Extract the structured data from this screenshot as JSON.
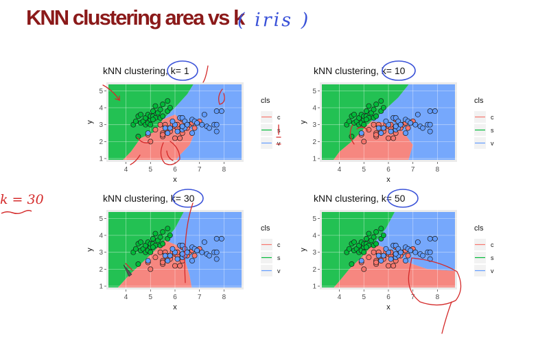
{
  "slide": {
    "title": "KNN clustering area vs k",
    "annotation_iris": "( iris )",
    "annotation_k": "k = 30"
  },
  "colors": {
    "title": "#8b1a1a",
    "class_c": "#f8766d",
    "class_s": "#00ba38",
    "class_v": "#619cff",
    "ink_blue": "#3a52d8",
    "ink_red": "#d42a2a"
  },
  "chart_data": [
    {
      "type": "scatter",
      "title": "kNN clustering, k= 1",
      "xlabel": "x",
      "ylabel": "y",
      "xlim": [
        3.2,
        8.8
      ],
      "ylim": [
        0.8,
        5.5
      ],
      "xticks": [
        4,
        5,
        6,
        7,
        8
      ],
      "yticks": [
        1,
        2,
        3,
        4,
        5
      ],
      "grid": true,
      "legend": {
        "title": "cls",
        "entries": [
          "c",
          "s",
          "v"
        ],
        "position": "right"
      },
      "background": "decision regions"
    },
    {
      "type": "scatter",
      "title": "kNN clustering, k= 10",
      "xlabel": "x",
      "ylabel": "y",
      "xlim": [
        3.2,
        8.8
      ],
      "ylim": [
        0.8,
        5.5
      ],
      "xticks": [
        4,
        5,
        6,
        7,
        8
      ],
      "yticks": [
        1,
        2,
        3,
        4,
        5
      ],
      "grid": true,
      "legend": {
        "title": "cls",
        "entries": [
          "c",
          "s",
          "v"
        ],
        "position": "right"
      },
      "background": "decision regions"
    },
    {
      "type": "scatter",
      "title": "kNN clustering, k= 30",
      "xlabel": "x",
      "ylabel": "y",
      "xlim": [
        3.2,
        8.8
      ],
      "ylim": [
        0.8,
        5.5
      ],
      "xticks": [
        4,
        5,
        6,
        7,
        8
      ],
      "yticks": [
        1,
        2,
        3,
        4,
        5
      ],
      "grid": true,
      "legend": {
        "title": "cls",
        "entries": [
          "c",
          "s",
          "v"
        ],
        "position": "right"
      },
      "background": "decision regions"
    },
    {
      "type": "scatter",
      "title": "kNN clustering, k= 50",
      "xlabel": "x",
      "ylabel": "y",
      "xlim": [
        3.2,
        8.8
      ],
      "ylim": [
        0.8,
        5.5
      ],
      "xticks": [
        4,
        5,
        6,
        7,
        8
      ],
      "yticks": [
        1,
        2,
        3,
        4,
        5
      ],
      "grid": true,
      "legend": {
        "title": "cls",
        "entries": [
          "c",
          "s",
          "v"
        ],
        "position": "right"
      },
      "background": "decision regions"
    }
  ],
  "points": {
    "s": [
      [
        4.3,
        3.0
      ],
      [
        4.4,
        3.2
      ],
      [
        4.5,
        3.5
      ],
      [
        4.6,
        3.1
      ],
      [
        4.7,
        3.2
      ],
      [
        4.8,
        3.0
      ],
      [
        4.8,
        3.4
      ],
      [
        4.9,
        3.1
      ],
      [
        4.9,
        3.6
      ],
      [
        5.0,
        3.3
      ],
      [
        5.0,
        3.5
      ],
      [
        5.1,
        3.8
      ],
      [
        5.1,
        3.5
      ],
      [
        5.2,
        3.4
      ],
      [
        5.2,
        4.1
      ],
      [
        5.3,
        3.7
      ],
      [
        5.4,
        3.9
      ],
      [
        5.4,
        3.4
      ],
      [
        5.5,
        3.5
      ],
      [
        5.5,
        4.2
      ],
      [
        5.7,
        3.8
      ],
      [
        5.7,
        4.4
      ],
      [
        5.8,
        4.0
      ],
      [
        5.1,
        3.3
      ],
      [
        4.6,
        3.6
      ],
      [
        4.5,
        2.3
      ],
      [
        5.0,
        3.0
      ]
    ],
    "c": [
      [
        4.9,
        2.4
      ],
      [
        5.0,
        2.0
      ],
      [
        5.2,
        2.7
      ],
      [
        5.4,
        3.0
      ],
      [
        5.5,
        2.3
      ],
      [
        5.5,
        2.5
      ],
      [
        5.6,
        2.9
      ],
      [
        5.6,
        3.0
      ],
      [
        5.7,
        2.8
      ],
      [
        5.8,
        2.7
      ],
      [
        5.9,
        3.0
      ],
      [
        6.0,
        2.2
      ],
      [
        6.0,
        2.9
      ],
      [
        6.1,
        2.8
      ],
      [
        6.2,
        2.2
      ],
      [
        6.3,
        2.5
      ],
      [
        6.4,
        2.9
      ],
      [
        6.5,
        2.8
      ],
      [
        6.6,
        3.0
      ],
      [
        6.7,
        3.1
      ],
      [
        6.8,
        2.8
      ],
      [
        6.9,
        3.1
      ],
      [
        7.0,
        3.2
      ],
      [
        5.7,
        2.6
      ],
      [
        6.1,
        3.0
      ],
      [
        5.8,
        2.6
      ],
      [
        6.3,
        3.3
      ],
      [
        5.5,
        2.4
      ]
    ],
    "v": [
      [
        4.9,
        2.5
      ],
      [
        5.6,
        2.8
      ],
      [
        5.7,
        2.5
      ],
      [
        5.8,
        2.8
      ],
      [
        6.0,
        3.0
      ],
      [
        6.1,
        2.6
      ],
      [
        6.2,
        3.4
      ],
      [
        6.3,
        2.7
      ],
      [
        6.3,
        3.4
      ],
      [
        6.4,
        2.8
      ],
      [
        6.4,
        3.2
      ],
      [
        6.5,
        3.0
      ],
      [
        6.7,
        3.3
      ],
      [
        6.7,
        2.5
      ],
      [
        6.8,
        3.2
      ],
      [
        6.9,
        3.1
      ],
      [
        7.1,
        3.0
      ],
      [
        7.2,
        3.6
      ],
      [
        7.3,
        2.9
      ],
      [
        7.4,
        2.8
      ],
      [
        7.6,
        3.0
      ],
      [
        7.7,
        2.6
      ],
      [
        7.7,
        3.0
      ],
      [
        7.7,
        3.8
      ],
      [
        7.9,
        3.8
      ],
      [
        6.3,
        2.9
      ],
      [
        5.9,
        3.2
      ]
    ]
  }
}
